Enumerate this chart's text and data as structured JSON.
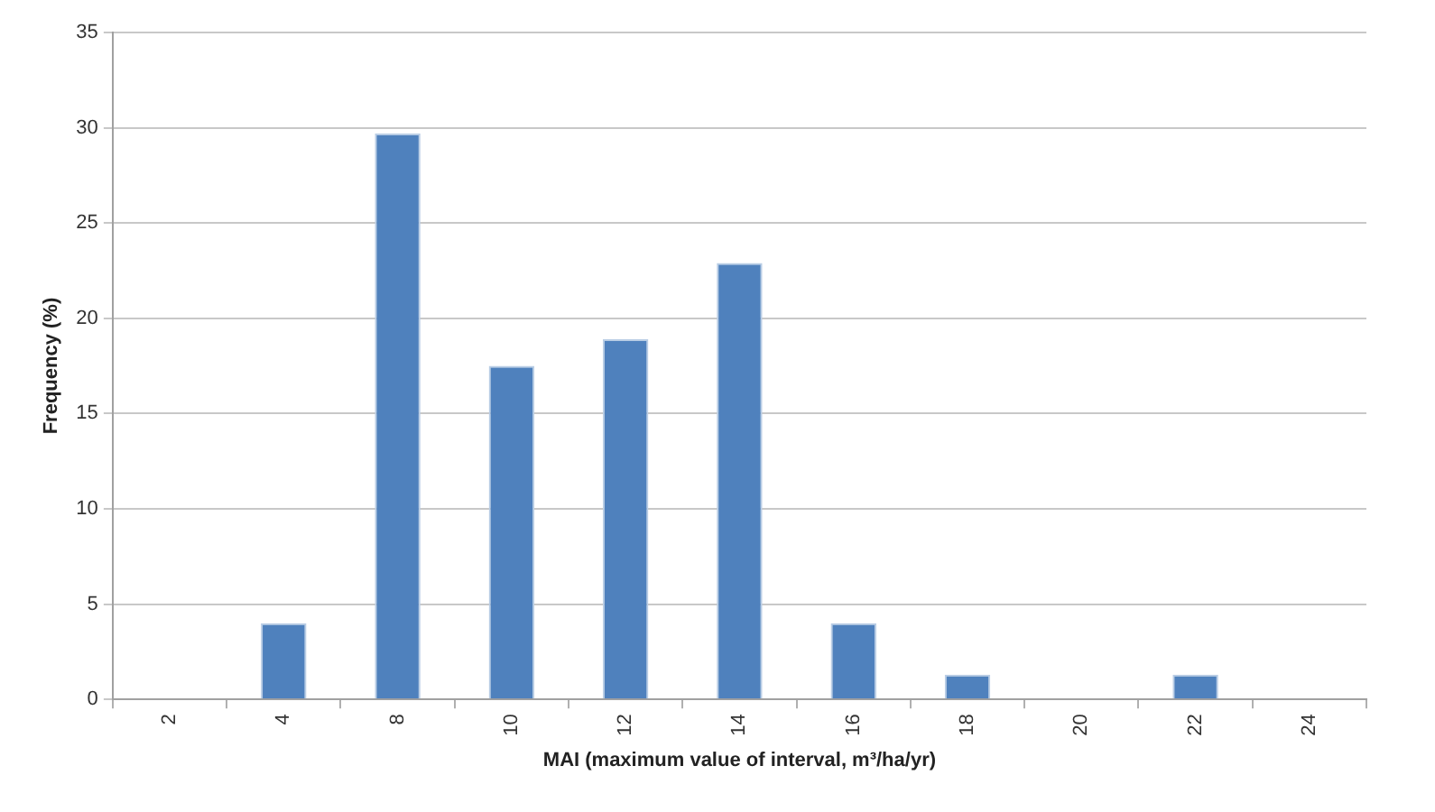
{
  "chart_data": {
    "type": "bar",
    "xlabel": "MAI (maximum value of interval, m³/ha/yr)",
    "ylabel": "Frequency (%)",
    "categories": [
      "2",
      "4",
      "8",
      "10",
      "12",
      "14",
      "16",
      "18",
      "20",
      "22",
      "24"
    ],
    "values": [
      0,
      4,
      29.7,
      17.5,
      18.9,
      22.9,
      4,
      1.3,
      0,
      1.3,
      0
    ],
    "color": "#4f81bd",
    "ylim": [
      0,
      35
    ],
    "yticks": [
      0,
      5,
      10,
      15,
      20,
      25,
      30,
      35
    ],
    "grid": "y",
    "legend": false
  }
}
